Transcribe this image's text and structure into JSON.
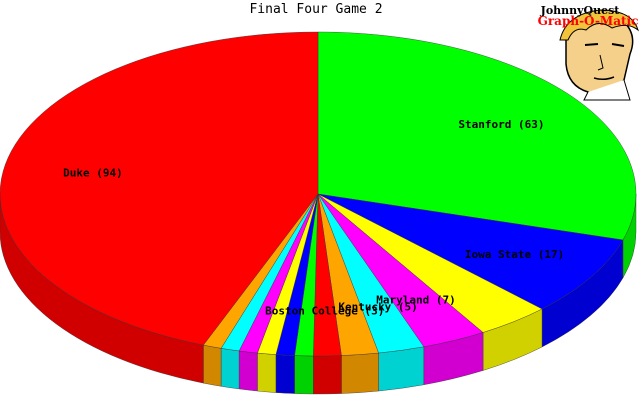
{
  "chart_data": {
    "type": "pie",
    "title": "Final Four Game 2",
    "start_angle_deg": 270,
    "direction": "clockwise",
    "slices": [
      {
        "label": "Stanford",
        "value": 63,
        "color": "#00ff00",
        "show_label": true
      },
      {
        "label": "Iowa State",
        "value": 17,
        "color": "#0000ff",
        "show_label": true
      },
      {
        "label": "",
        "value": 8,
        "color": "#ffff00",
        "show_label": false
      },
      {
        "label": "Maryland",
        "value": 7,
        "color": "#ff00ff",
        "show_label": true
      },
      {
        "label": "Kentucky",
        "value": 5,
        "color": "#00ffff",
        "show_label": true
      },
      {
        "label": "",
        "value": 4,
        "color": "#ffa500",
        "show_label": false
      },
      {
        "label": "Boston College",
        "value": 3,
        "color": "#ff0000",
        "show_label": true
      },
      {
        "label": "",
        "value": 2,
        "color": "#00ff00",
        "show_label": false
      },
      {
        "label": "",
        "value": 2,
        "color": "#0000ff",
        "show_label": false
      },
      {
        "label": "",
        "value": 2,
        "color": "#ffff00",
        "show_label": false
      },
      {
        "label": "",
        "value": 2,
        "color": "#ff00ff",
        "show_label": false
      },
      {
        "label": "",
        "value": 2,
        "color": "#00ffff",
        "show_label": false
      },
      {
        "label": "",
        "value": 2,
        "color": "#ffa500",
        "show_label": false
      },
      {
        "label": "Duke",
        "value": 94,
        "color": "#ff0000",
        "show_label": true
      }
    ]
  },
  "logo": {
    "line1": "JohnnyQuest",
    "line2": "Graph-O-Matic",
    "line2_color": "#ff0000"
  }
}
